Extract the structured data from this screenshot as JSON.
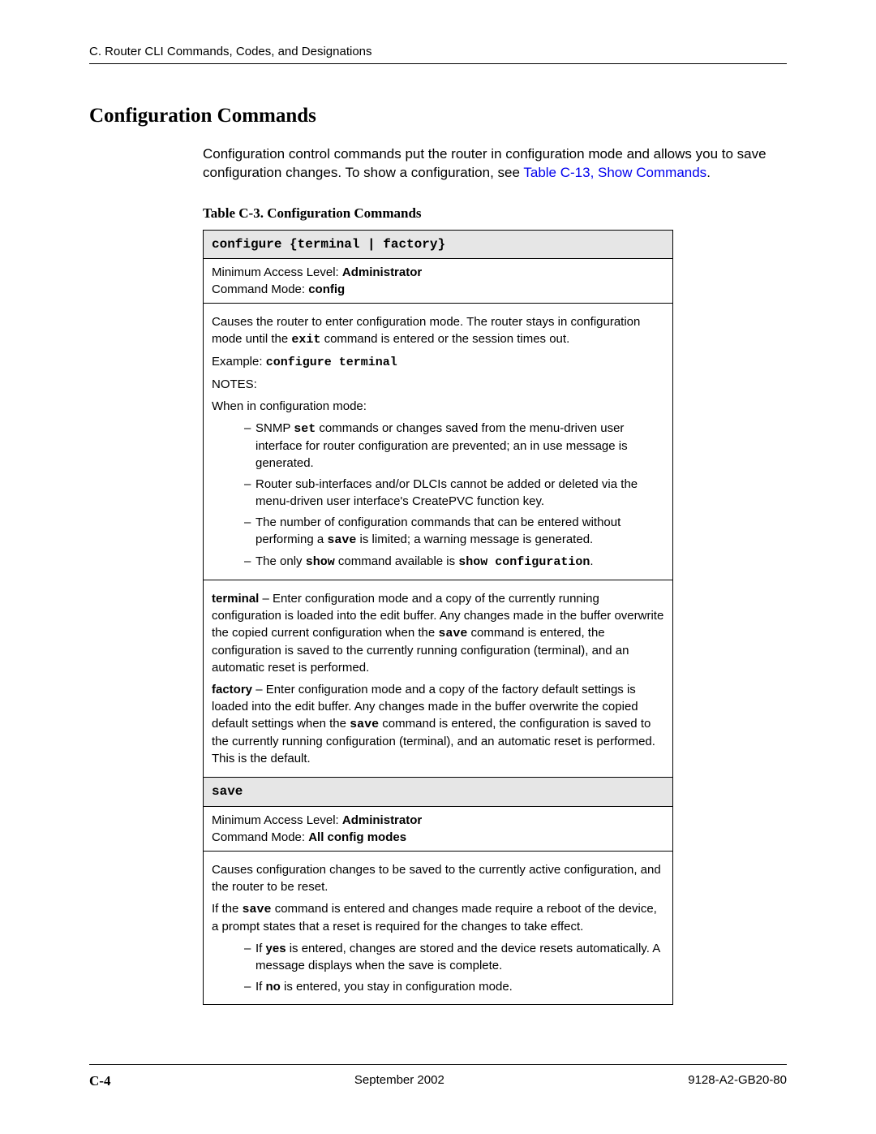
{
  "header": "C. Router CLI Commands, Codes, and Designations",
  "section_title": "Configuration Commands",
  "intro1": "Configuration control commands put the router in configuration mode and allows you to save configuration changes. To show a configuration, see ",
  "intro_link": "Table C-13, Show Commands",
  "intro_period": ".",
  "table_caption": "Table C-3.   Configuration Commands",
  "row1_header": "configure {terminal | factory}",
  "row2_pre": "Minimum Access Level: ",
  "row2_admin": "Administrator",
  "row2_cmdmode_pre": "Command Mode: ",
  "row2_cmdmode": "config",
  "row3_p1a": "Causes the router to enter configuration mode. The router stays in configuration mode until the ",
  "row3_exit": "exit",
  "row3_p1b": " command is entered or the session times out.",
  "row3_example_pre": "Example: ",
  "row3_example_cmd": "configure terminal",
  "row3_notes": "NOTES:",
  "row3_when": "When in configuration mode:",
  "row3_li1a": "SNMP ",
  "row3_li1_set": "set",
  "row3_li1b": " commands or changes saved from the menu-driven user interface for router configuration are prevented; an in use message is generated.",
  "row3_li2": "Router sub-interfaces and/or DLCIs cannot be added or deleted via the menu-driven user interface's CreatePVC function key.",
  "row3_li3a": "The number of configuration commands that can be entered without performing a ",
  "row3_li3_save": "save",
  "row3_li3b": " is limited; a warning message is generated.",
  "row3_li4a": "The only ",
  "row3_li4_show": "show",
  "row3_li4b": " command available is ",
  "row3_li4_cmd": "show configuration",
  "row3_li4c": ".",
  "row4_term_bold": "terminal",
  "row4_term_a": " – Enter configuration mode and a copy of the currently running configuration is loaded into the edit buffer. Any changes made in the buffer overwrite the copied current configuration when the ",
  "row4_term_save": "save",
  "row4_term_b": " command is entered, the configuration is saved to the currently running configuration (terminal), and an automatic reset is performed.",
  "row4_fact_bold": "factory",
  "row4_fact_a": " – Enter configuration mode and a copy of the factory default settings is loaded into the edit buffer. Any changes made in the buffer overwrite the copied default settings when the ",
  "row4_fact_save": "save",
  "row4_fact_b": " command is entered, the configuration is saved to the currently running configuration (terminal), and an automatic reset is performed. This is the default.",
  "row5_header": "save",
  "row6_pre": "Minimum Access Level: ",
  "row6_admin": "Administrator",
  "row6_cmdmode_pre": "Command Mode: ",
  "row6_cmdmode": "All config modes",
  "row7_p1": "Causes configuration changes to be saved to the currently active configuration, and the router to be reset.",
  "row7_p2a": "If the ",
  "row7_p2_save": "save",
  "row7_p2b": " command is entered and changes made require a reboot of the device, a prompt states that a reset is required for the changes to take effect.",
  "row7_li1a": "If ",
  "row7_li1_yes": "yes",
  "row7_li1b": " is entered, changes are stored and the device resets automatically. A message displays when the save is complete.",
  "row7_li2a": "If ",
  "row7_li2_no": "no",
  "row7_li2b": " is entered, you stay in configuration mode.",
  "footer_page": "C-4",
  "footer_date": "September 2002",
  "footer_doc": "9128-A2-GB20-80"
}
